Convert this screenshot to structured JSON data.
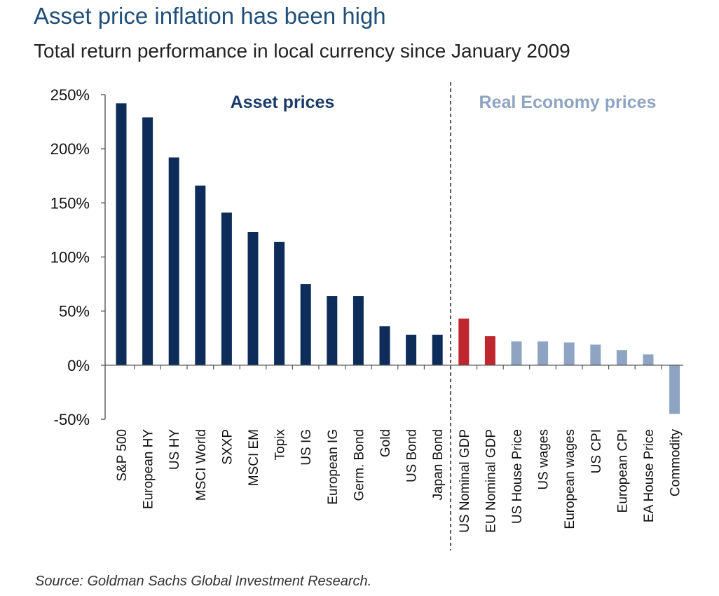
{
  "header": {
    "title": "Asset price inflation has been high",
    "subtitle": "Total return performance in local currency since January 2009"
  },
  "footer": {
    "source": "Source: Goldman Sachs Global Investment Research."
  },
  "colors": {
    "asset": "#0d2c5a",
    "nominal_gdp": "#c0262e",
    "real_economy": "#8ea4c2",
    "title": "#1f4e79",
    "asset_label": "#1a3a6b",
    "real_label": "#8ea4c2"
  },
  "chart_data": {
    "type": "bar",
    "title": "Asset price inflation has been high",
    "subtitle": "Total return performance in local currency since January 2009",
    "xlabel": "",
    "ylabel": "",
    "ylim": [
      -50,
      250
    ],
    "yticks": [
      250,
      200,
      150,
      100,
      50,
      0,
      -50
    ],
    "yticks_labels": [
      "250%",
      "200%",
      "150%",
      "100%",
      "50%",
      "0%",
      "-50%"
    ],
    "grid": false,
    "categories": [
      "S&P 500",
      "European HY",
      "US HY",
      "MSCI World",
      "SXXP",
      "MSCI EM",
      "Topix",
      "US IG",
      "European IG",
      "Germ. Bond",
      "Gold",
      "US Bond",
      "Japan Bond",
      "US Nominal GDP",
      "EU Nominal GDP",
      "US House Price",
      "US wages",
      "European wages",
      "US CPI",
      "European CPI",
      "EA House Price",
      "Commodity"
    ],
    "values": [
      242,
      229,
      192,
      166,
      141,
      123,
      114,
      75,
      64,
      64,
      36,
      28,
      28,
      43,
      27,
      22,
      22,
      21,
      19,
      14,
      10,
      -45
    ],
    "groups": [
      "asset",
      "asset",
      "asset",
      "asset",
      "asset",
      "asset",
      "asset",
      "asset",
      "asset",
      "asset",
      "asset",
      "asset",
      "asset",
      "nominal_gdp",
      "nominal_gdp",
      "real_economy",
      "real_economy",
      "real_economy",
      "real_economy",
      "real_economy",
      "real_economy",
      "real_economy"
    ],
    "annotations": [
      {
        "text": "Asset prices",
        "group": "asset"
      },
      {
        "text": "Real Economy prices",
        "group": "real_economy"
      }
    ],
    "divider_after_index": 12
  }
}
